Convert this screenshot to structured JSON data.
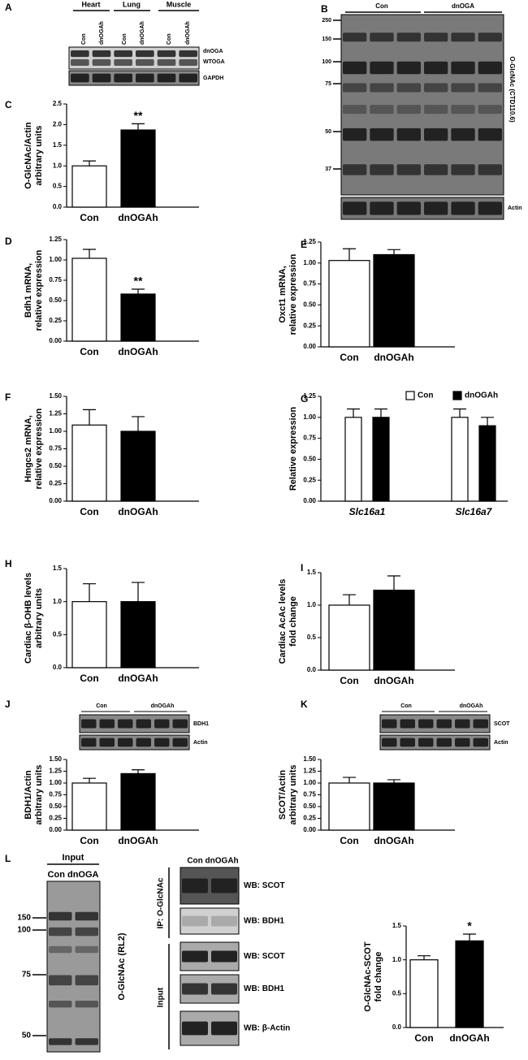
{
  "chart_data": [
    {
      "type": "bar",
      "panel": "C",
      "y_label": [
        "O-GlcNAc/Actin",
        "arbitrary units"
      ],
      "categories": [
        "Con",
        "dnOGAh"
      ],
      "values": [
        1.0,
        1.87
      ],
      "errors": [
        0.12,
        0.15
      ],
      "colors": [
        "#ffffff",
        "#000000"
      ],
      "significance": [
        null,
        "**"
      ],
      "ylim": [
        0,
        2.5
      ],
      "yticks": [
        {
          "value": 0,
          "label": "0.0"
        },
        0.5,
        {
          "value": 1,
          "label": "1.0"
        },
        1.5,
        {
          "value": 2,
          "label": "2.0"
        },
        2.5
      ]
    },
    {
      "type": "bar",
      "panel": "D",
      "y_label": [
        "Bdh1 mRNA,",
        "relative expression"
      ],
      "categories": [
        "Con",
        "dnOGAh"
      ],
      "values": [
        1.02,
        0.58
      ],
      "errors": [
        0.11,
        0.06
      ],
      "colors": [
        "#ffffff",
        "#000000"
      ],
      "significance": [
        null,
        "**"
      ],
      "ylim": [
        0,
        1.25
      ],
      "yticks": [
        {
          "value": 0,
          "label": "0.00"
        },
        0.25,
        {
          "value": 0.5,
          "label": "0.50"
        },
        0.75,
        {
          "value": 1,
          "label": "1.00"
        },
        1.25
      ]
    },
    {
      "type": "bar",
      "panel": "E",
      "y_label": [
        "Oxct1 mRNA,",
        "relative expression"
      ],
      "categories": [
        "Con",
        "dnOGAh"
      ],
      "values": [
        1.03,
        1.1
      ],
      "errors": [
        0.14,
        0.06
      ],
      "colors": [
        "#ffffff",
        "#000000"
      ],
      "ylim": [
        0,
        1.25
      ],
      "yticks": [
        {
          "value": 0,
          "label": "0.00"
        },
        0.25,
        {
          "value": 0.5,
          "label": "0.50"
        },
        0.75,
        {
          "value": 1,
          "label": "1.00"
        },
        1.25
      ]
    },
    {
      "type": "bar",
      "panel": "F",
      "y_label": [
        "Hmgcs2 mRNA,",
        "relative expression"
      ],
      "categories": [
        "Con",
        "dnOGAh"
      ],
      "values": [
        1.09,
        1.0
      ],
      "errors": [
        0.22,
        0.21
      ],
      "colors": [
        "#ffffff",
        "#000000"
      ],
      "ylim": [
        0,
        1.5
      ],
      "yticks": [
        {
          "value": 0,
          "label": "0.00"
        },
        0.25,
        {
          "value": 0.5,
          "label": "0.50"
        },
        0.75,
        {
          "value": 1,
          "label": "1.00"
        },
        1.25,
        {
          "value": 1.5,
          "label": "1.50"
        }
      ]
    },
    {
      "type": "grouped_bar",
      "panel": "G",
      "y_label": [
        "Relative expression"
      ],
      "categories": [
        "Slc16a1",
        "Slc16a7"
      ],
      "series": [
        {
          "name": "Con",
          "color": "#ffffff",
          "values": [
            1.0,
            1.0
          ],
          "errors": [
            0.1,
            0.1
          ]
        },
        {
          "name": "dnOGAh",
          "color": "#000000",
          "values": [
            1.0,
            0.9
          ],
          "errors": [
            0.1,
            0.1
          ]
        }
      ],
      "ylim": [
        0,
        1.25
      ],
      "yticks": [
        {
          "value": 0,
          "label": "0.00"
        },
        0.25,
        {
          "value": 0.5,
          "label": "0.50"
        },
        0.75,
        {
          "value": 1,
          "label": "1.00"
        },
        1.25
      ]
    },
    {
      "type": "bar",
      "panel": "H",
      "y_label": [
        "Cardiac β-OHB levels",
        "arbitrary units"
      ],
      "categories": [
        "Con",
        "dnOGAh"
      ],
      "values": [
        1.0,
        1.0
      ],
      "errors": [
        0.27,
        0.29
      ],
      "colors": [
        "#ffffff",
        "#000000"
      ],
      "ylim": [
        0,
        1.5
      ],
      "yticks": [
        {
          "value": 0,
          "label": "0.0"
        },
        0.5,
        {
          "value": 1,
          "label": "1.0"
        },
        1.5
      ]
    },
    {
      "type": "bar",
      "panel": "I",
      "y_label": [
        "Cardiac AcAc levels",
        "fold change"
      ],
      "categories": [
        "Con",
        "dnOGAh"
      ],
      "values": [
        1.0,
        1.23
      ],
      "errors": [
        0.16,
        0.22
      ],
      "colors": [
        "#ffffff",
        "#000000"
      ],
      "ylim": [
        0,
        1.5
      ],
      "yticks": [
        {
          "value": 0,
          "label": "0.0"
        },
        0.5,
        {
          "value": 1,
          "label": "1.0"
        },
        1.5
      ]
    },
    {
      "type": "bar",
      "panel": "J",
      "y_label": [
        "BDH1/Actin",
        "arbitrary units"
      ],
      "categories": [
        "Con",
        "dnOGAh"
      ],
      "values": [
        1.0,
        1.2
      ],
      "errors": [
        0.1,
        0.08
      ],
      "colors": [
        "#ffffff",
        "#000000"
      ],
      "ylim": [
        0,
        1.5
      ],
      "yticks": [
        {
          "value": 0,
          "label": "0.00"
        },
        0.25,
        {
          "value": 0.5,
          "label": "0.50"
        },
        0.75,
        {
          "value": 1,
          "label": "1.00"
        },
        1.25,
        {
          "value": 1.5,
          "label": "1.50"
        }
      ]
    },
    {
      "type": "bar",
      "panel": "K",
      "y_label": [
        "SCOT/Actin",
        "arbitrary units"
      ],
      "categories": [
        "Con",
        "dnOGAh"
      ],
      "values": [
        1.0,
        1.0
      ],
      "errors": [
        0.12,
        0.07
      ],
      "colors": [
        "#ffffff",
        "#000000"
      ],
      "ylim": [
        0,
        1.5
      ],
      "yticks": [
        {
          "value": 0,
          "label": "0.00"
        },
        0.25,
        {
          "value": 0.5,
          "label": "0.50"
        },
        0.75,
        {
          "value": 1,
          "label": "1.00"
        },
        1.25,
        {
          "value": 1.5,
          "label": "1.50"
        }
      ]
    },
    {
      "type": "bar",
      "y_label": [
        "O-GlcNAc-SCOT",
        "fold change"
      ],
      "categories": [
        "Con",
        "dnOGAh"
      ],
      "values": [
        1.0,
        1.28
      ],
      "errors": [
        0.06,
        0.1
      ],
      "colors": [
        "#ffffff",
        "#000000"
      ],
      "significance": [
        null,
        "*"
      ],
      "ylim": [
        0,
        1.5
      ],
      "yticks": [
        {
          "value": 0,
          "label": "0.0"
        },
        0.5,
        {
          "value": 1,
          "label": "1.0"
        },
        1.5
      ]
    }
  ],
  "blots": {
    "A": {
      "letter": "A",
      "tissues": [
        "Heart",
        "Lung",
        "Muscle"
      ],
      "lanes": [
        "Con",
        "dnOGAh",
        "Con",
        "dnOGAh",
        "Con",
        "dnOGAh"
      ],
      "bands": [
        "dnOGA",
        "WTOGA",
        "GAPDH"
      ]
    },
    "B": {
      "letter": "B",
      "groups": [
        "Con",
        "dnOGA"
      ],
      "markers": [
        "250",
        "150",
        "100",
        "75",
        "50",
        "37"
      ],
      "antibody": "O-GlcNAc (CTD110.6)",
      "loading": "Actin"
    },
    "J": {
      "groups": [
        "Con",
        "dnOGAh"
      ],
      "bands": [
        "BDH1",
        "Actin"
      ]
    },
    "K": {
      "groups": [
        "Con",
        "dnOGAh"
      ],
      "bands": [
        "SCOT",
        "Actin"
      ]
    },
    "L": {
      "letter": "L",
      "input_title": "Input",
      "input_lanes": "Con dnOGA",
      "markers": [
        "150",
        "100",
        "75",
        "50"
      ],
      "input_antibody": "O-GlcNAc (RL2)",
      "ip_lanes": "Con dnOGAh",
      "ip_label": "IP: O-GlcNAc",
      "input_label": "Input",
      "wb": [
        "WB: SCOT",
        "WB: BDH1",
        "WB: SCOT",
        "WB: BDH1",
        "WB: β-Actin"
      ]
    }
  }
}
